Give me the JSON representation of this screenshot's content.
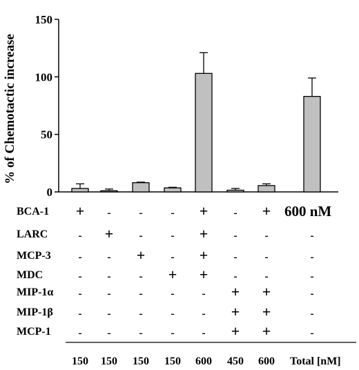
{
  "chart_data": {
    "type": "bar",
    "title": "",
    "xlabel": "",
    "ylabel": "% of Chemotactic increase",
    "ylim": [
      0,
      150
    ],
    "yticks": [
      0,
      50,
      100,
      150
    ],
    "grid": false,
    "bar_color": "#c0c0c0",
    "categories": [
      "150",
      "150",
      "150",
      "150",
      "600",
      "450",
      "600",
      ""
    ],
    "values": [
      3,
      1,
      8,
      3.5,
      103,
      1.5,
      5.5,
      83
    ],
    "errors": [
      4,
      1.5,
      0.5,
      0.5,
      18,
      1.5,
      1.5,
      16
    ],
    "total_label": "Total [nM]",
    "annotation": "600 nM",
    "treatment_table": {
      "rows": [
        {
          "label": "BCA-1",
          "marks": [
            "+",
            "-",
            "-",
            "-",
            "+",
            "-",
            "+",
            ""
          ]
        },
        {
          "label": "LARC",
          "marks": [
            "-",
            "+",
            "-",
            "-",
            "+",
            "-",
            "-",
            "-"
          ]
        },
        {
          "label": "MCP-3",
          "marks": [
            "-",
            "-",
            "+",
            "-",
            "+",
            "-",
            "-",
            "-"
          ]
        },
        {
          "label": "MDC",
          "marks": [
            "-",
            "-",
            "-",
            "+",
            "+",
            "-",
            "-",
            "-"
          ]
        },
        {
          "label": "MIP-1α",
          "marks": [
            "-",
            "-",
            "-",
            "-",
            "-",
            "+",
            "+",
            "-"
          ]
        },
        {
          "label": "MIP-1β",
          "marks": [
            "-",
            "-",
            "-",
            "-",
            "-",
            "+",
            "+",
            "-"
          ]
        },
        {
          "label": "MCP-1",
          "marks": [
            "-",
            "-",
            "-",
            "-",
            "-",
            "+",
            "+",
            "-"
          ]
        }
      ]
    }
  }
}
